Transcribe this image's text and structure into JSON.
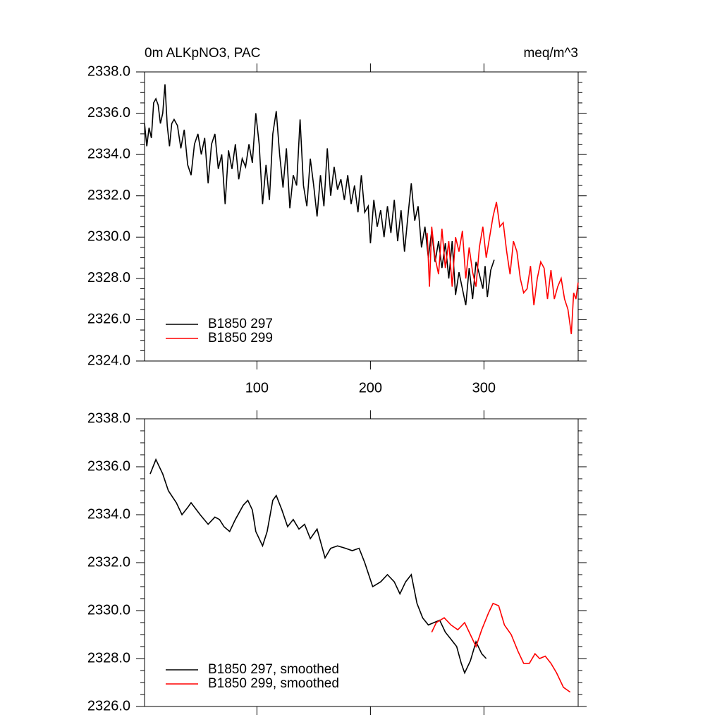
{
  "chart_data": [
    {
      "type": "line",
      "title": "0m ALKpNO3, PAC",
      "units": "meq/m^3",
      "xlim": [
        1,
        383
      ],
      "xticks": [
        100,
        200,
        300
      ],
      "ylim": [
        2324,
        2338
      ],
      "yticks": [
        {
          "value": 2324,
          "label": "2324.0"
        },
        {
          "value": 2326,
          "label": "2326.0"
        },
        {
          "value": 2328,
          "label": "2328.0"
        },
        {
          "value": 2330,
          "label": "2330.0"
        },
        {
          "value": 2332,
          "label": "2332.0"
        },
        {
          "value": 2334,
          "label": "2334.0"
        },
        {
          "value": 2336,
          "label": "2336.0"
        },
        {
          "value": 2338,
          "label": "2338.0"
        }
      ],
      "legend": "lower left",
      "series": [
        {
          "name": "B1850 297",
          "color": "#000000",
          "x": [
            1,
            3,
            5,
            7,
            9,
            11,
            13,
            15,
            17,
            19,
            21,
            23,
            25,
            27,
            30,
            33,
            36,
            39,
            42,
            45,
            48,
            51,
            54,
            57,
            60,
            63,
            66,
            69,
            72,
            75,
            78,
            81,
            84,
            87,
            90,
            93,
            96,
            99,
            102,
            105,
            108,
            111,
            114,
            117,
            120,
            123,
            126,
            129,
            132,
            135,
            138,
            141,
            144,
            147,
            150,
            153,
            156,
            159,
            162,
            165,
            168,
            171,
            174,
            177,
            180,
            183,
            186,
            189,
            192,
            195,
            198,
            200,
            203,
            206,
            209,
            212,
            215,
            218,
            221,
            224,
            227,
            230,
            233,
            236,
            239,
            242,
            245,
            248,
            251,
            254,
            257,
            260,
            263,
            266,
            269,
            272,
            275,
            278,
            281,
            284,
            287,
            290,
            293,
            296,
            299,
            301,
            303,
            306,
            309
          ],
          "values": [
            2335.5,
            2334.4,
            2335.3,
            2334.8,
            2336.5,
            2336.7,
            2336.4,
            2335.5,
            2336.0,
            2337.4,
            2335.4,
            2334.4,
            2335.5,
            2335.7,
            2335.4,
            2334.3,
            2335.2,
            2333.5,
            2333.0,
            2334.5,
            2335.0,
            2334.0,
            2334.8,
            2332.6,
            2334.5,
            2335.0,
            2333.3,
            2334.0,
            2331.6,
            2334.2,
            2333.3,
            2334.5,
            2332.8,
            2333.8,
            2333.4,
            2334.5,
            2333.6,
            2336.0,
            2334.5,
            2331.6,
            2333.5,
            2331.8,
            2335.0,
            2336.1,
            2334.0,
            2332.4,
            2334.3,
            2331.4,
            2333.0,
            2332.5,
            2335.7,
            2332.5,
            2331.5,
            2333.8,
            2332.5,
            2331.0,
            2333.0,
            2331.5,
            2334.3,
            2332.0,
            2333.4,
            2332.3,
            2332.8,
            2331.8,
            2333.0,
            2331.6,
            2332.5,
            2331.2,
            2333.0,
            2331.2,
            2331.5,
            2329.7,
            2331.8,
            2330.5,
            2331.3,
            2330.0,
            2331.5,
            2330.2,
            2331.8,
            2329.8,
            2331.3,
            2329.3,
            2331.0,
            2332.6,
            2330.8,
            2331.5,
            2329.5,
            2330.5,
            2329.0,
            2330.3,
            2328.8,
            2329.8,
            2328.5,
            2329.7,
            2328.0,
            2329.8,
            2327.2,
            2328.3,
            2327.5,
            2326.7,
            2328.5,
            2327.0,
            2328.8,
            2328.2,
            2327.5,
            2328.6,
            2327.1,
            2328.4,
            2328.9
          ]
        },
        {
          "name": "B1850 299",
          "color": "#ff0000",
          "x": [
            250,
            252,
            254,
            257,
            260,
            263,
            266,
            269,
            272,
            275,
            278,
            281,
            284,
            287,
            290,
            293,
            296,
            299,
            302,
            305,
            308,
            311,
            314,
            317,
            320,
            323,
            326,
            329,
            332,
            335,
            338,
            341,
            344,
            347,
            350,
            353,
            356,
            359,
            362,
            365,
            368,
            371,
            374,
            377,
            379,
            381,
            383
          ],
          "values": [
            2330.2,
            2327.6,
            2330.5,
            2329.0,
            2328.2,
            2330.4,
            2328.5,
            2329.8,
            2327.6,
            2330.0,
            2329.3,
            2330.3,
            2328.0,
            2329.5,
            2328.3,
            2327.6,
            2329.5,
            2330.5,
            2329.0,
            2330.0,
            2331.0,
            2331.7,
            2330.5,
            2330.7,
            2329.3,
            2328.2,
            2329.8,
            2329.3,
            2328.0,
            2327.3,
            2327.5,
            2328.6,
            2326.7,
            2328.0,
            2328.8,
            2328.5,
            2327.0,
            2328.4,
            2327.0,
            2327.6,
            2328.0,
            2327.0,
            2326.5,
            2325.3,
            2327.3,
            2327.0,
            2327.8
          ]
        }
      ]
    },
    {
      "type": "line",
      "xlim": [
        1,
        383
      ],
      "ylim": [
        2326,
        2338
      ],
      "yticks": [
        {
          "value": 2326,
          "label": "2326.0"
        },
        {
          "value": 2328,
          "label": "2328.0"
        },
        {
          "value": 2330,
          "label": "2330.0"
        },
        {
          "value": 2332,
          "label": "2332.0"
        },
        {
          "value": 2334,
          "label": "2334.0"
        },
        {
          "value": 2336,
          "label": "2336.0"
        },
        {
          "value": 2338,
          "label": "2338.0"
        }
      ],
      "legend": "lower left",
      "series": [
        {
          "name": "B1850 297, smoothed",
          "color": "#000000",
          "x": [
            6,
            11,
            17,
            22,
            29,
            34,
            39,
            42,
            50,
            57,
            63,
            67,
            71,
            76,
            81,
            88,
            92,
            96,
            99,
            105,
            109,
            114,
            117,
            122,
            127,
            132,
            137,
            142,
            147,
            153,
            160,
            165,
            171,
            178,
            184,
            190,
            195,
            202,
            209,
            215,
            221,
            226,
            231,
            236,
            241,
            246,
            251,
            256,
            261,
            266,
            271,
            276,
            280,
            283,
            288,
            293,
            298,
            302
          ],
          "values": [
            2335.7,
            2336.3,
            2335.7,
            2335.0,
            2334.5,
            2334.0,
            2334.3,
            2334.5,
            2334.0,
            2333.6,
            2333.9,
            2333.8,
            2333.5,
            2333.3,
            2333.8,
            2334.4,
            2334.6,
            2334.2,
            2333.3,
            2332.7,
            2333.3,
            2334.6,
            2334.8,
            2334.2,
            2333.5,
            2333.8,
            2333.4,
            2333.6,
            2333.0,
            2333.4,
            2332.2,
            2332.6,
            2332.7,
            2332.6,
            2332.5,
            2332.6,
            2332.0,
            2331.0,
            2331.2,
            2331.5,
            2331.2,
            2330.7,
            2331.2,
            2331.5,
            2330.3,
            2329.7,
            2329.4,
            2329.5,
            2329.6,
            2329.1,
            2328.8,
            2328.5,
            2327.8,
            2327.4,
            2327.9,
            2328.7,
            2328.2,
            2328.0
          ]
        },
        {
          "name": "B1850 299, smoothed",
          "color": "#ff0000",
          "x": [
            254,
            258,
            265,
            271,
            277,
            283,
            289,
            293,
            298,
            304,
            308,
            313,
            318,
            324,
            330,
            335,
            340,
            345,
            349,
            354,
            359,
            364,
            370,
            376
          ],
          "values": [
            2329.1,
            2329.5,
            2329.7,
            2329.4,
            2329.2,
            2329.5,
            2328.9,
            2328.5,
            2329.2,
            2329.9,
            2330.3,
            2330.2,
            2329.4,
            2329.0,
            2328.3,
            2327.8,
            2327.8,
            2328.2,
            2328.0,
            2328.1,
            2327.8,
            2327.4,
            2326.8,
            2326.6
          ]
        }
      ]
    }
  ]
}
